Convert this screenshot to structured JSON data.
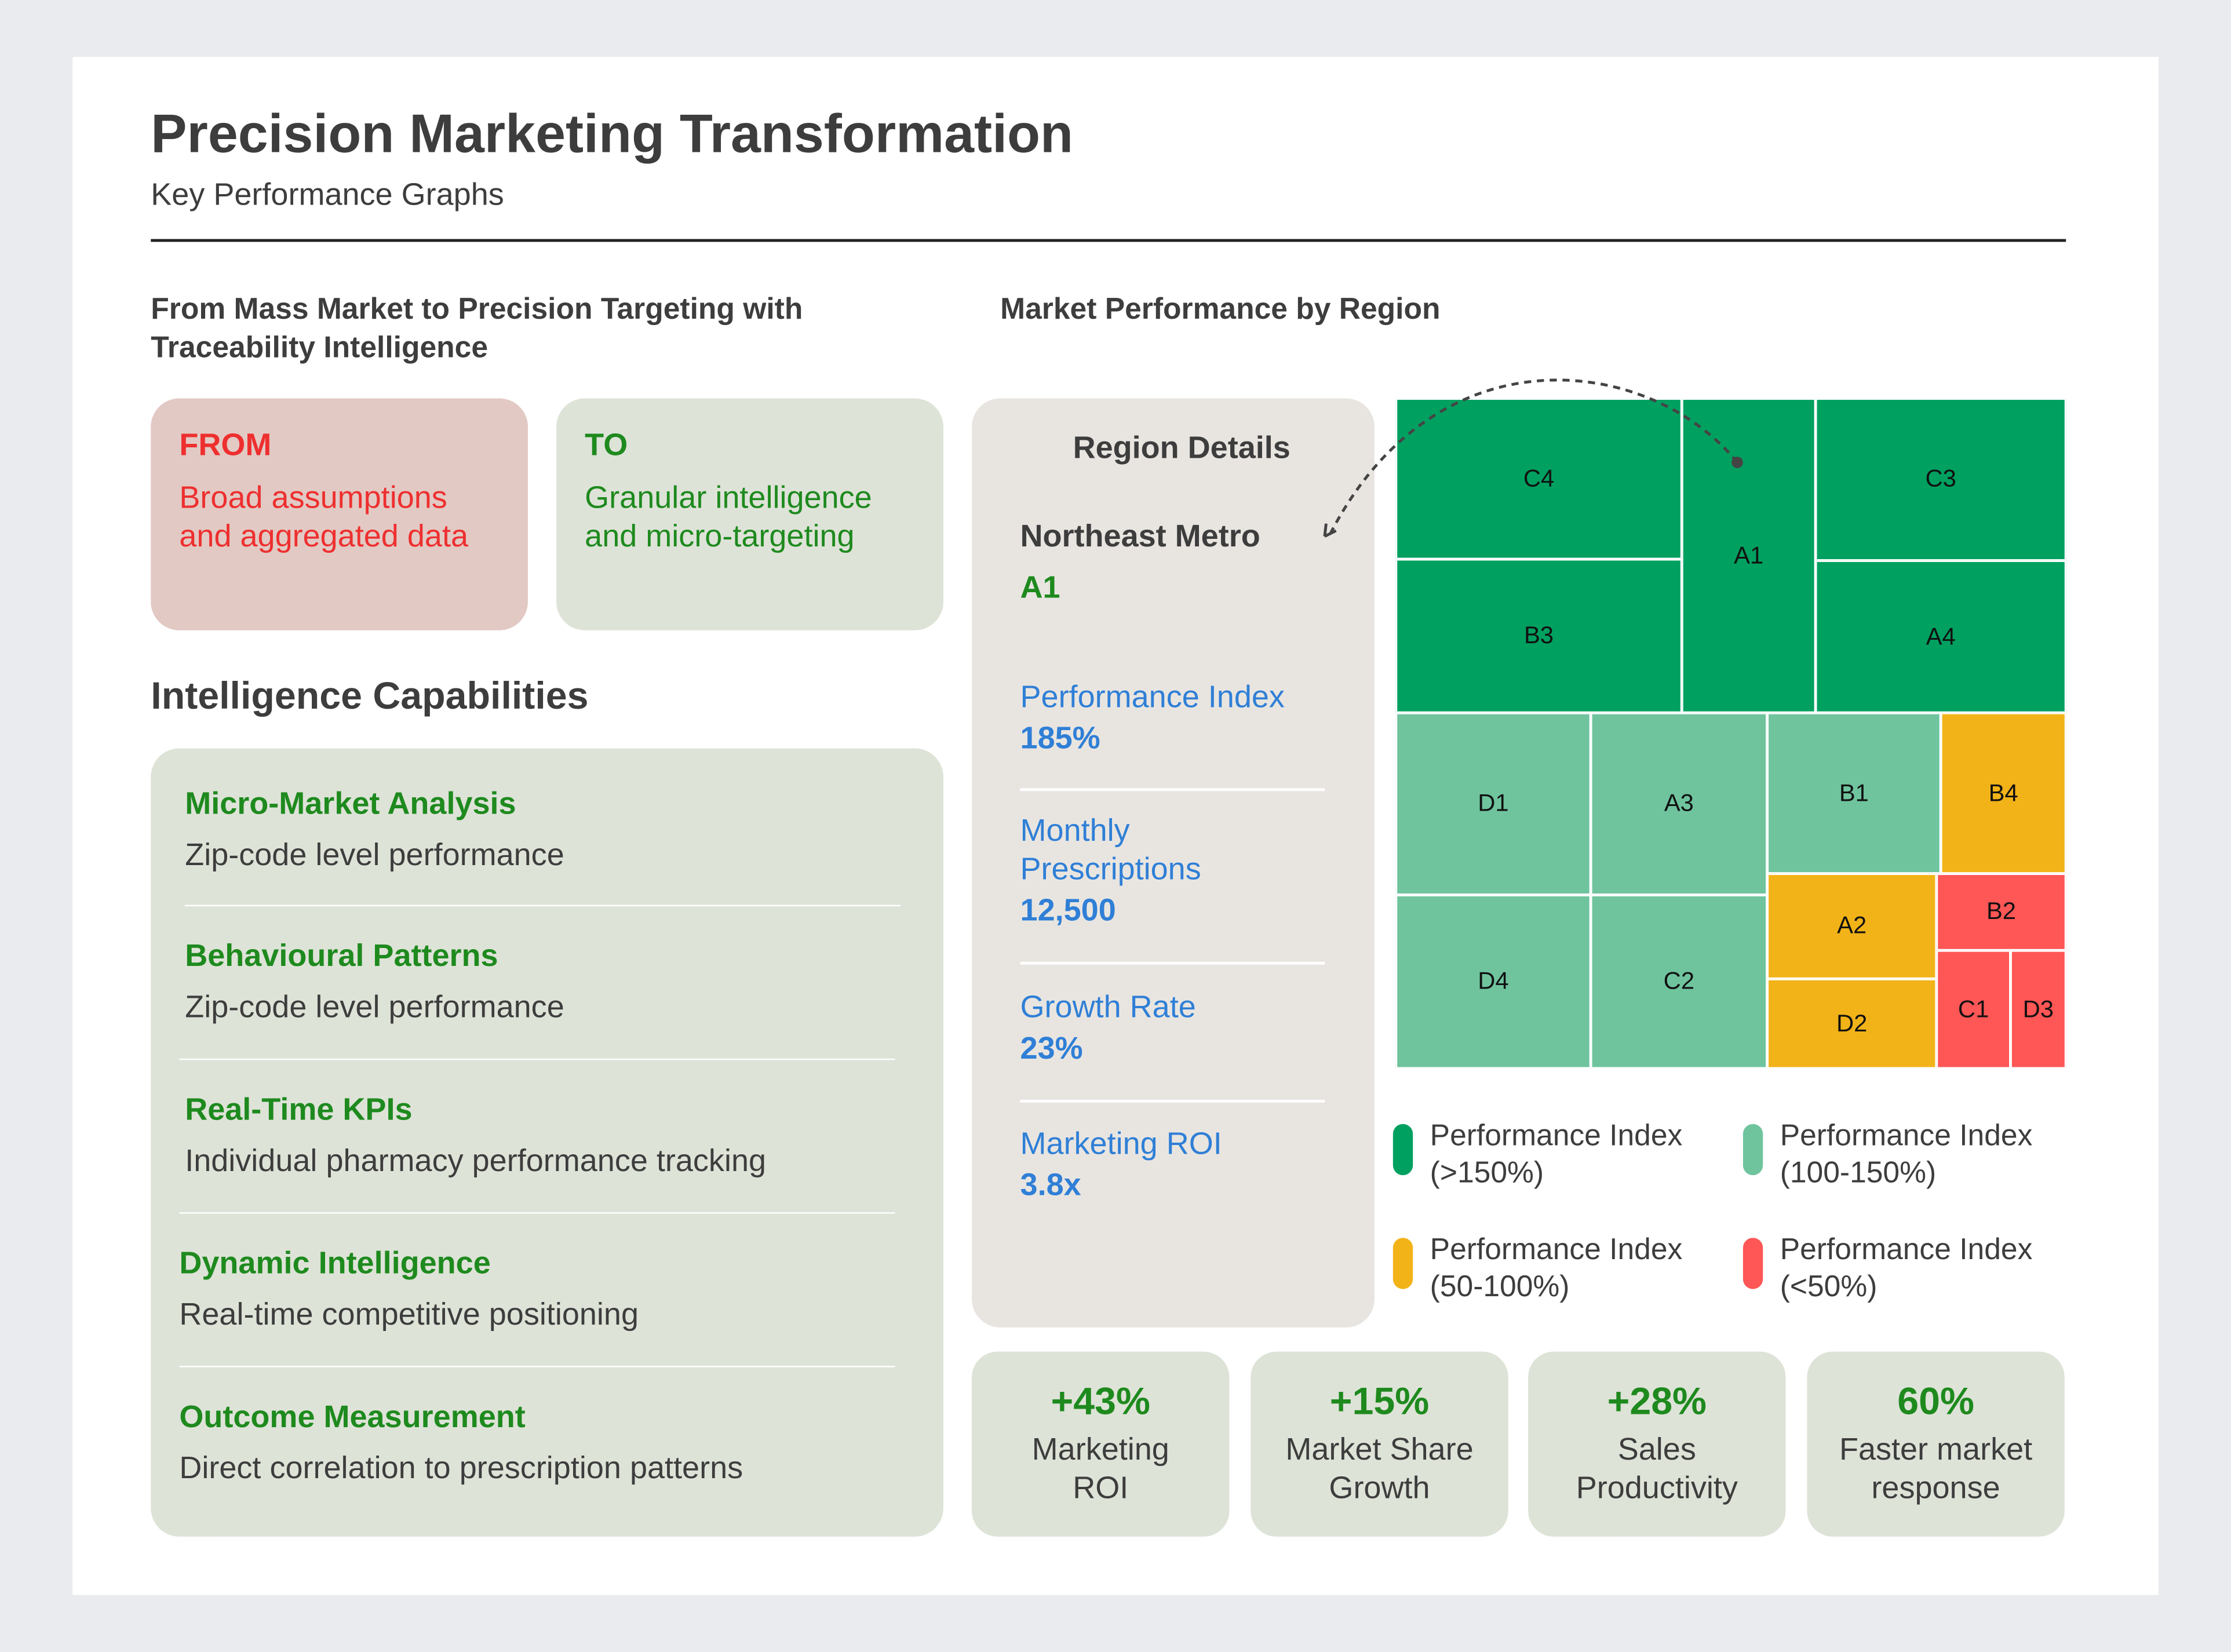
{
  "header": {
    "title": "Precision Marketing Transformation",
    "subtitle": "Key Performance Graphs"
  },
  "left": {
    "section_title": "From Mass Market to Precision Targeting with Traceability Intelligence",
    "from": {
      "label": "FROM",
      "text": "Broad assumptions and aggregated data"
    },
    "to": {
      "label": "TO",
      "text": "Granular intelligence and micro-targeting"
    },
    "capabilities_title": "Intelligence Capabilities",
    "capabilities": [
      {
        "title": "Micro-Market Analysis",
        "desc": "Zip-code level performance"
      },
      {
        "title": "Behavioural Patterns",
        "desc": "Zip-code level performance"
      },
      {
        "title": "Real-Time KPIs",
        "desc": "Individual pharmacy performance tracking"
      },
      {
        "title": "Dynamic Intelligence",
        "desc": "Real-time competitive positioning"
      },
      {
        "title": "Outcome Measurement",
        "desc": "Direct correlation to prescription patterns"
      }
    ]
  },
  "right": {
    "section_title": "Market Performance by Region",
    "details": {
      "title": "Region Details",
      "region_name": "Northeast Metro",
      "region_code": "A1",
      "metrics": [
        {
          "label": "Performance Index",
          "value": "185%"
        },
        {
          "label": "Monthly Prescriptions",
          "value": "12,500"
        },
        {
          "label": "Growth Rate",
          "value": "23%"
        },
        {
          "label": "Marketing ROI",
          "value": "3.8x"
        }
      ]
    },
    "kpis": [
      {
        "value": "+43%",
        "label": "Marketing ROI"
      },
      {
        "value": "+15%",
        "label": "Market Share Growth"
      },
      {
        "value": "+28%",
        "label": "Sales Productivity"
      },
      {
        "value": "60%",
        "label": "Faster market response"
      }
    ]
  },
  "chart_data": {
    "type": "treemap",
    "title": "Market Performance by Region",
    "selected": "A1",
    "legend": [
      {
        "tier": "high",
        "label": "Performance Index (>150%)",
        "color": "#00a060"
      },
      {
        "tier": "good",
        "label": "Performance Index (100-150%)",
        "color": "#6fc49e"
      },
      {
        "tier": "mid",
        "label": "Performance Index (50-100%)",
        "color": "#f2b318"
      },
      {
        "tier": "low",
        "label": "Performance Index (<50%)",
        "color": "#ff5656"
      }
    ],
    "cells": [
      {
        "label": "C4",
        "tier": "high"
      },
      {
        "label": "B3",
        "tier": "high"
      },
      {
        "label": "A1",
        "tier": "high"
      },
      {
        "label": "C3",
        "tier": "high"
      },
      {
        "label": "A4",
        "tier": "high"
      },
      {
        "label": "D1",
        "tier": "good"
      },
      {
        "label": "A3",
        "tier": "good"
      },
      {
        "label": "D4",
        "tier": "good"
      },
      {
        "label": "C2",
        "tier": "good"
      },
      {
        "label": "B1",
        "tier": "good"
      },
      {
        "label": "B4",
        "tier": "mid"
      },
      {
        "label": "A2",
        "tier": "mid"
      },
      {
        "label": "D2",
        "tier": "mid"
      },
      {
        "label": "B2",
        "tier": "low"
      },
      {
        "label": "C1",
        "tier": "low"
      },
      {
        "label": "D3",
        "tier": "low"
      }
    ]
  }
}
